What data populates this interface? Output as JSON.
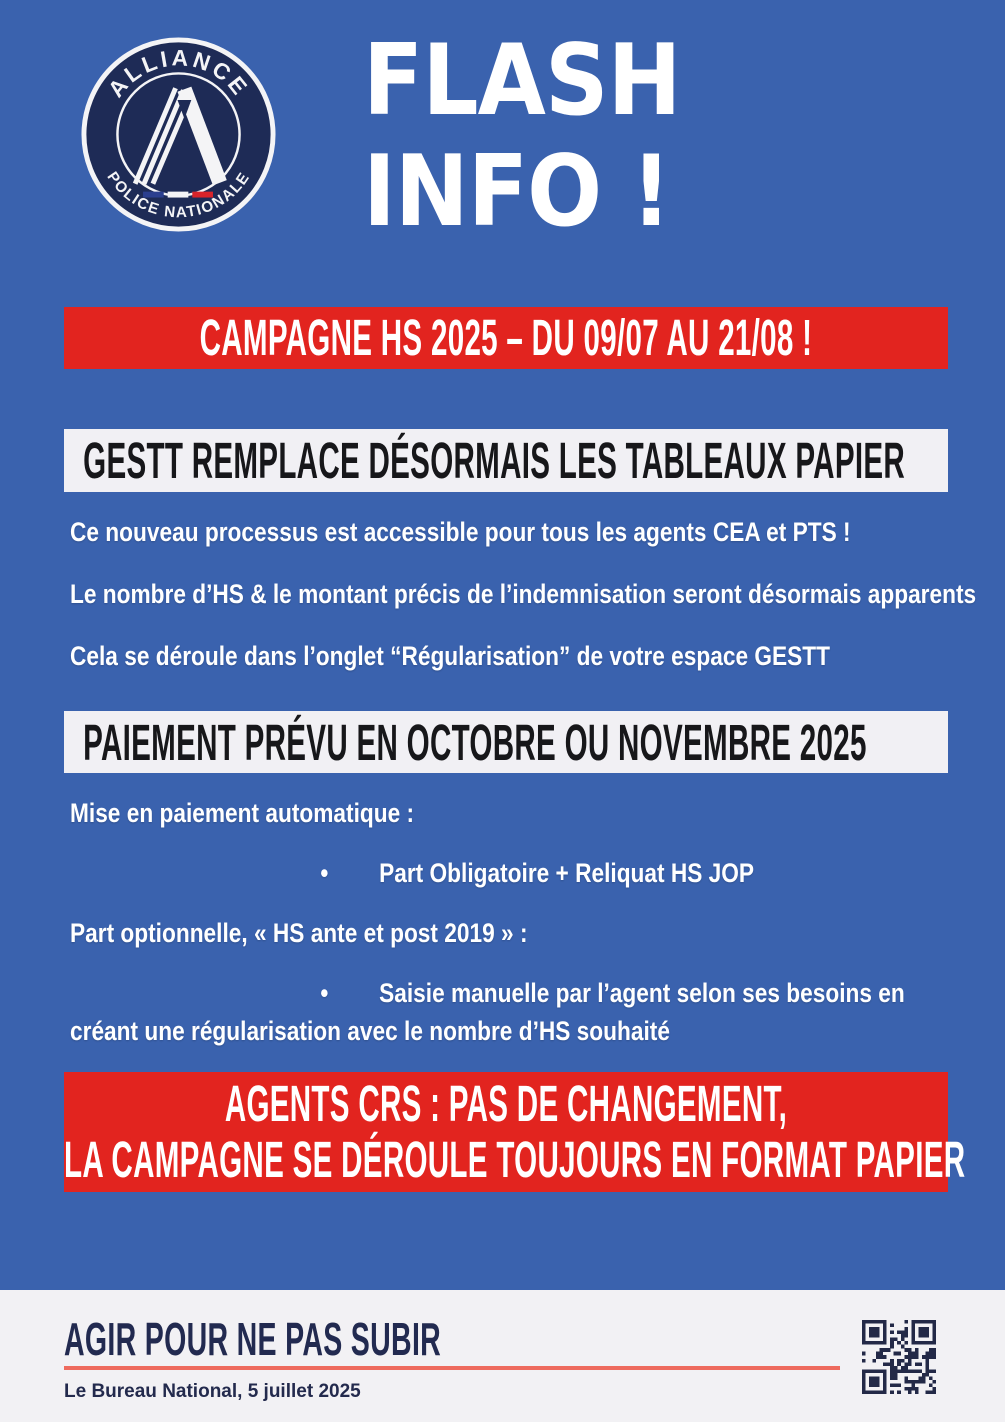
{
  "poster": {
    "logo": {
      "arc_top": "ALLIANCE",
      "arc_bottom": "POLICE NATIONALE"
    },
    "title": {
      "line1": "FLASH",
      "line2": "INFO !"
    },
    "campaign_banner": "CAMPAGNE HS 2025 – DU 09/07 AU 21/08 !",
    "gestt": {
      "heading": "GESTT REMPLACE DÉSORMAIS LES TABLEAUX PAPIER",
      "p1": "Ce nouveau processus est accessible pour tous les agents CEA et PTS !",
      "p2": "Le nombre d’HS & le montant précis de l’indemnisation seront désormais apparents",
      "p3": "Cela se déroule dans l’onglet “Régularisation” de votre espace GESTT"
    },
    "paiement": {
      "heading": "PAIEMENT PRÉVU EN OCTOBRE OU NOVEMBRE 2025",
      "intro1": "Mise en paiement automatique :",
      "bullet1": "Part Obligatoire + Reliquat HS JOP",
      "intro2": "Part optionnelle, « HS ante et post 2019 » :",
      "bullet2": "Saisie manuelle par l’agent selon ses besoins en créant une régularisation avec le nombre d’HS souhaité",
      "bullet_glyph": "•"
    },
    "crs_banner": {
      "line1": "AGENTS CRS : PAS DE CHANGEMENT,",
      "line2": "LA CAMPAGNE SE DÉROULE TOUJOURS EN FORMAT PAPIER"
    },
    "footer": {
      "slogan": "AGIR POUR NE PAS SUBIR",
      "signature": "Le Bureau National, 5 juillet 2025"
    },
    "colors": {
      "background_blue": "#3a62ae",
      "banner_red": "#e2241f",
      "banner_white": "#f1f0f4",
      "logo_navy": "#1e2b56",
      "footer_background": "#f2f1f4",
      "accent_salmon": "#ee6a5e",
      "qr_navy": "#232947",
      "flag_blue": "#2b3f8f",
      "flag_red": "#d8232a"
    }
  }
}
